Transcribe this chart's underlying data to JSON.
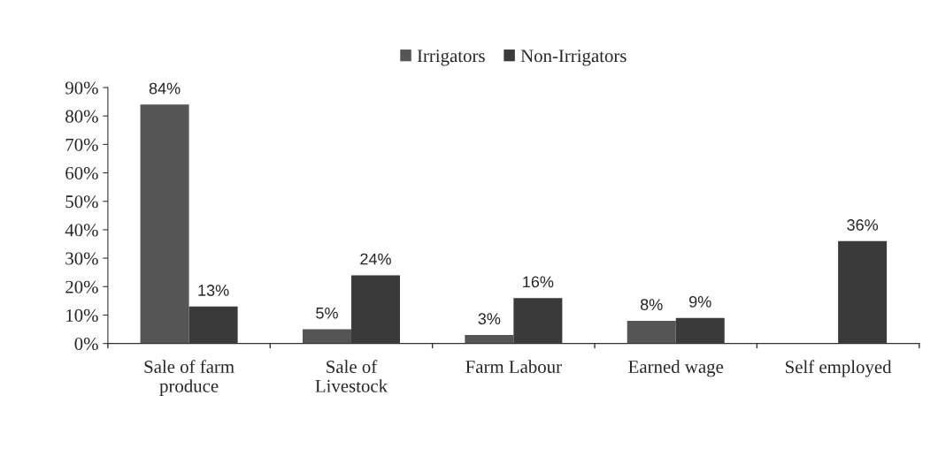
{
  "chart_data": {
    "type": "bar",
    "categories": [
      "Sale of farm\nproduce",
      "Sale of\nLivestock",
      "Farm Labour",
      "Earned wage",
      "Self employed"
    ],
    "series": [
      {
        "name": "Irrigators",
        "color": "#555555",
        "values": [
          84,
          5,
          3,
          8,
          null
        ],
        "value_labels": [
          "84%",
          "5%",
          "3%",
          "8%",
          null
        ]
      },
      {
        "name": "Non-Irrigators",
        "color": "#3a3a3a",
        "values": [
          13,
          24,
          16,
          9,
          36
        ],
        "value_labels": [
          "13%",
          "24%",
          "16%",
          "9%",
          "36%"
        ]
      }
    ],
    "ylim": [
      0,
      90
    ],
    "yticks": [
      {
        "value": 0,
        "label": "0%"
      },
      {
        "value": 10,
        "label": "10%"
      },
      {
        "value": 20,
        "label": "20%"
      },
      {
        "value": 30,
        "label": "30%"
      },
      {
        "value": 40,
        "label": "40%"
      },
      {
        "value": 50,
        "label": "50%"
      },
      {
        "value": 60,
        "label": "60%"
      },
      {
        "value": 70,
        "label": "70%"
      },
      {
        "value": 80,
        "label": "80%"
      },
      {
        "value": 90,
        "label": "90%"
      }
    ],
    "grid": false,
    "legend": "top"
  }
}
